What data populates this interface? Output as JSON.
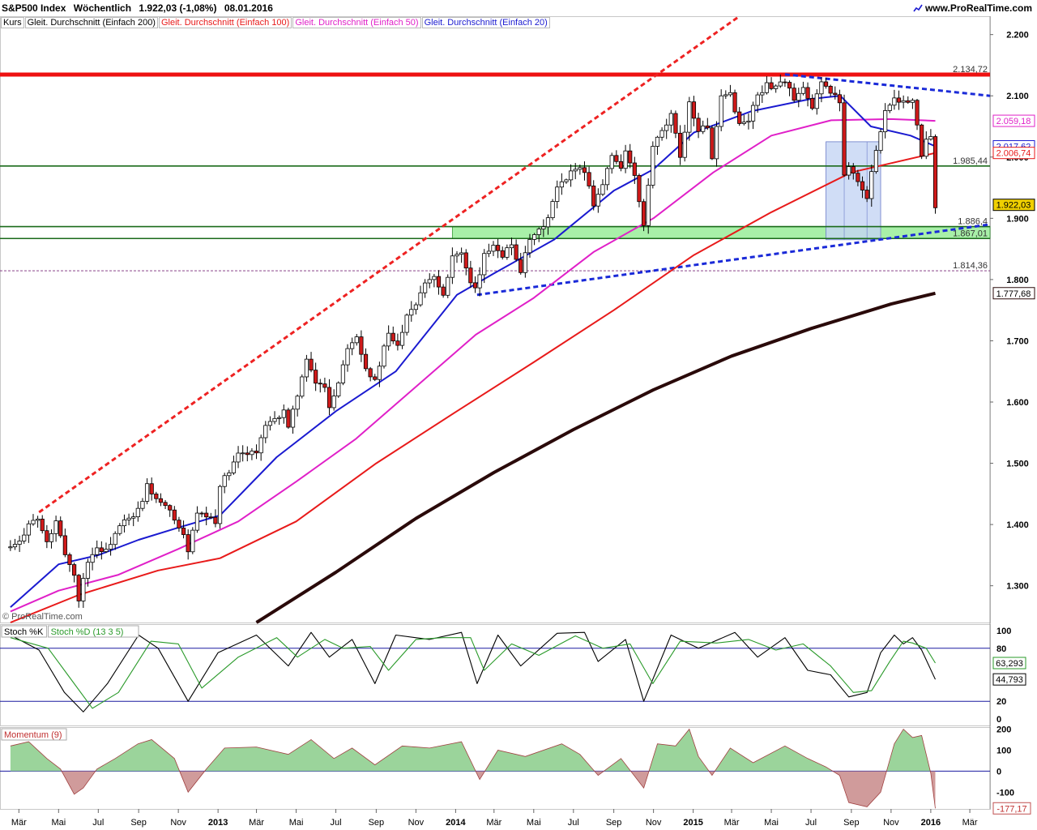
{
  "header": {
    "instrument": "S&P500 Index",
    "period": "Wöchentlich",
    "quote": "1.922,03 (-1,08%)",
    "date": "08.01.2016",
    "site": "www.ProRealTime.com"
  },
  "legend": [
    {
      "label": "Kurs",
      "color": "#000000"
    },
    {
      "label": "Gleit. Durchschnitt (Einfach 200)",
      "color": "#000000"
    },
    {
      "label": "Gleit. Durchschnitt (Einfach 100)",
      "color": "#e81a1a"
    },
    {
      "label": "Gleit. Durchschnitt (Einfach 50)",
      "color": "#e020c8"
    },
    {
      "label": "Gleit. Durchschnitt (Einfach 20)",
      "color": "#1a1ad0"
    }
  ],
  "watermark": "© ProRealTime.com",
  "colors": {
    "up_candle": "#ffffff",
    "down_candle": "#d01a1a",
    "sma200": "#2a0a0a",
    "sma100": "#e81a1a",
    "sma50": "#e020c8",
    "sma20": "#1a1ad0",
    "resistance": "#ee1111",
    "support": "#1a6a1a",
    "trend_dashed_red": "#ee2222",
    "trend_dashed_blue": "#1a2ad8",
    "support_zone": "#a8f0a8",
    "highlight_box": "#c4d4f4",
    "stoch_k": "#000000",
    "stoch_d": "#2a9a2a",
    "momentum_pos": "#8acc8a",
    "momentum_neg": "#c88a8a"
  },
  "chart_data": [
    {
      "type": "candlestick",
      "title": "S&P500 Index Wöchentlich",
      "ylim": [
        1240,
        2230
      ],
      "y_ticks": [
        "1.300",
        "1.400",
        "1.500",
        "1.600",
        "1.700",
        "1.800",
        "1.900",
        "2.000",
        "2.100",
        "2.200"
      ],
      "x_ticks": [
        "Mär",
        "Mai",
        "Jul",
        "Sep",
        "Nov",
        "2013",
        "Mär",
        "Mai",
        "Jul",
        "Sep",
        "Nov",
        "2014",
        "Mär",
        "Mai",
        "Jul",
        "Sep",
        "Nov",
        "2015",
        "Mär",
        "Mai",
        "Jul",
        "Sep",
        "Nov",
        "2016",
        "Mär"
      ],
      "x_range": [
        "2012-02",
        "2016-04"
      ],
      "grid": false,
      "close_points": [
        [
          "2012-02-17",
          1362
        ],
        [
          "2012-03-02",
          1370
        ],
        [
          "2012-03-16",
          1404
        ],
        [
          "2012-03-30",
          1408
        ],
        [
          "2012-04-13",
          1370
        ],
        [
          "2012-04-27",
          1403
        ],
        [
          "2012-05-11",
          1353
        ],
        [
          "2012-05-25",
          1317
        ],
        [
          "2012-06-01",
          1278
        ],
        [
          "2012-06-15",
          1342
        ],
        [
          "2012-06-29",
          1362
        ],
        [
          "2012-07-13",
          1356
        ],
        [
          "2012-07-27",
          1385
        ],
        [
          "2012-08-10",
          1405
        ],
        [
          "2012-08-24",
          1411
        ],
        [
          "2012-09-07",
          1437
        ],
        [
          "2012-09-14",
          1465
        ],
        [
          "2012-09-28",
          1440
        ],
        [
          "2012-10-12",
          1428
        ],
        [
          "2012-10-26",
          1411
        ],
        [
          "2012-11-09",
          1380
        ],
        [
          "2012-11-16",
          1359
        ],
        [
          "2012-11-30",
          1416
        ],
        [
          "2012-12-14",
          1413
        ],
        [
          "2012-12-28",
          1402
        ],
        [
          "2013-01-04",
          1466
        ],
        [
          "2013-01-18",
          1485
        ],
        [
          "2013-02-01",
          1513
        ],
        [
          "2013-02-15",
          1519
        ],
        [
          "2013-03-01",
          1518
        ],
        [
          "2013-03-15",
          1560
        ],
        [
          "2013-03-29",
          1569
        ],
        [
          "2013-04-12",
          1588
        ],
        [
          "2013-04-19",
          1555
        ],
        [
          "2013-05-03",
          1614
        ],
        [
          "2013-05-17",
          1667
        ],
        [
          "2013-05-31",
          1631
        ],
        [
          "2013-06-14",
          1626
        ],
        [
          "2013-06-21",
          1593
        ],
        [
          "2013-07-05",
          1632
        ],
        [
          "2013-07-19",
          1692
        ],
        [
          "2013-08-02",
          1709
        ],
        [
          "2013-08-16",
          1656
        ],
        [
          "2013-08-30",
          1633
        ],
        [
          "2013-09-13",
          1688
        ],
        [
          "2013-09-20",
          1710
        ],
        [
          "2013-10-04",
          1691
        ],
        [
          "2013-10-18",
          1745
        ],
        [
          "2013-11-01",
          1762
        ],
        [
          "2013-11-15",
          1798
        ],
        [
          "2013-11-29",
          1806
        ],
        [
          "2013-12-13",
          1775
        ],
        [
          "2013-12-27",
          1841
        ],
        [
          "2014-01-10",
          1842
        ],
        [
          "2014-01-24",
          1790
        ],
        [
          "2014-01-31",
          1782
        ],
        [
          "2014-02-14",
          1838
        ],
        [
          "2014-02-28",
          1859
        ],
        [
          "2014-03-14",
          1841
        ],
        [
          "2014-03-28",
          1857
        ],
        [
          "2014-04-11",
          1815
        ],
        [
          "2014-04-25",
          1863
        ],
        [
          "2014-05-09",
          1878
        ],
        [
          "2014-05-23",
          1900
        ],
        [
          "2014-06-06",
          1949
        ],
        [
          "2014-06-20",
          1962
        ],
        [
          "2014-07-04",
          1985
        ],
        [
          "2014-07-18",
          1978
        ],
        [
          "2014-08-01",
          1925
        ],
        [
          "2014-08-15",
          1955
        ],
        [
          "2014-08-29",
          2003
        ],
        [
          "2014-09-12",
          1985
        ],
        [
          "2014-09-19",
          2010
        ],
        [
          "2014-10-03",
          1967
        ],
        [
          "2014-10-17",
          1886
        ],
        [
          "2014-10-31",
          2018
        ],
        [
          "2014-11-14",
          2039
        ],
        [
          "2014-11-28",
          2067
        ],
        [
          "2014-12-12",
          2002
        ],
        [
          "2014-12-26",
          2088
        ],
        [
          "2015-01-09",
          2044
        ],
        [
          "2015-01-23",
          2051
        ],
        [
          "2015-01-30",
          1995
        ],
        [
          "2015-02-13",
          2096
        ],
        [
          "2015-02-27",
          2104
        ],
        [
          "2015-03-13",
          2053
        ],
        [
          "2015-03-27",
          2061
        ],
        [
          "2015-04-10",
          2102
        ],
        [
          "2015-04-24",
          2117
        ],
        [
          "2015-05-08",
          2116
        ],
        [
          "2015-05-22",
          2126
        ],
        [
          "2015-06-05",
          2092
        ],
        [
          "2015-06-19",
          2110
        ],
        [
          "2015-07-03",
          2077
        ],
        [
          "2015-07-17",
          2127
        ],
        [
          "2015-07-31",
          2104
        ],
        [
          "2015-08-14",
          2092
        ],
        [
          "2015-08-21",
          1971
        ],
        [
          "2015-08-28",
          1989
        ],
        [
          "2015-09-11",
          1961
        ],
        [
          "2015-09-25",
          1931
        ],
        [
          "2015-10-09",
          2015
        ],
        [
          "2015-10-23",
          2075
        ],
        [
          "2015-11-06",
          2099
        ],
        [
          "2015-11-20",
          2089
        ],
        [
          "2015-12-04",
          2091
        ],
        [
          "2015-12-18",
          2005
        ],
        [
          "2015-12-31",
          2044
        ],
        [
          "2016-01-08",
          1922
        ]
      ],
      "series": [
        {
          "name": "Gleit. Durchschnitt (Einfach 200)",
          "x": [
            "2013-03-01",
            "2013-07-01",
            "2013-11-01",
            "2014-03-01",
            "2014-07-01",
            "2014-11-01",
            "2015-03-01",
            "2015-07-01",
            "2015-11-01",
            "2016-01-08"
          ],
          "values": [
            1240,
            1322,
            1410,
            1485,
            1555,
            1620,
            1675,
            1720,
            1760,
            1777.68
          ]
        },
        {
          "name": "Gleit. Durchschnitt (Einfach 100)",
          "x": [
            "2012-02-17",
            "2012-06-01",
            "2012-10-01",
            "2013-01-04",
            "2013-05-01",
            "2013-09-01",
            "2014-01-03",
            "2014-05-01",
            "2014-09-01",
            "2015-01-02",
            "2015-05-01",
            "2015-09-01",
            "2016-01-08"
          ],
          "values": [
            1240,
            1285,
            1325,
            1345,
            1405,
            1500,
            1585,
            1665,
            1750,
            1840,
            1910,
            1975,
            2006.74
          ]
        },
        {
          "name": "Gleit. Durchschnitt (Einfach 50)",
          "x": [
            "2012-02-17",
            "2012-05-01",
            "2012-08-01",
            "2012-11-01",
            "2013-02-01",
            "2013-05-01",
            "2013-08-01",
            "2013-11-01",
            "2014-02-01",
            "2014-05-01",
            "2014-08-01",
            "2014-11-01",
            "2015-02-01",
            "2015-05-01",
            "2015-08-01",
            "2015-11-01",
            "2016-01-08"
          ],
          "values": [
            1258,
            1292,
            1318,
            1360,
            1405,
            1470,
            1540,
            1625,
            1710,
            1770,
            1845,
            1900,
            1975,
            2035,
            2060,
            2062,
            2059.18
          ]
        },
        {
          "name": "Gleit. Durchschnitt (Einfach 20)",
          "x": [
            "2012-02-17",
            "2012-05-01",
            "2012-07-01",
            "2012-09-01",
            "2012-11-01",
            "2013-01-04",
            "2013-04-01",
            "2013-07-01",
            "2013-10-01",
            "2014-01-03",
            "2014-03-01",
            "2014-06-01",
            "2014-09-01",
            "2014-11-01",
            "2015-01-02",
            "2015-04-01",
            "2015-07-01",
            "2015-08-15",
            "2015-10-01",
            "2015-12-01",
            "2016-01-08"
          ],
          "values": [
            1265,
            1335,
            1350,
            1375,
            1395,
            1415,
            1510,
            1585,
            1650,
            1775,
            1810,
            1865,
            1945,
            1980,
            2040,
            2075,
            2095,
            2100,
            2050,
            2035,
            2017.62
          ]
        }
      ],
      "levels": [
        {
          "label": "2.134,72",
          "value": 2134.72
        },
        {
          "label": "1.985,44",
          "value": 1985.44
        },
        {
          "label": "1.886,4",
          "value": 1886.4
        },
        {
          "label": "1.867,01",
          "value": 1867.01
        },
        {
          "label": "1.814,36",
          "value": 1814.36
        }
      ],
      "price_tags": [
        {
          "label": "2.059,18",
          "value": 2059.18
        },
        {
          "label": "2.017,62",
          "value": 2017.62
        },
        {
          "label": "2.006,74",
          "value": 2006.74
        },
        {
          "label": "1.922,03",
          "value": 1922.03
        },
        {
          "label": "1.777,68",
          "value": 1777.68
        }
      ]
    },
    {
      "type": "line",
      "legend": [
        "Stoch %K",
        "Stoch %D (13 3 5)"
      ],
      "ylim": [
        0,
        100
      ],
      "y_ticks": [
        "100",
        "80",
        "20",
        "0"
      ],
      "reference_lines": [
        80,
        20
      ],
      "series": [
        {
          "name": "Stoch %K",
          "x": [
            "2012-02-17",
            "2012-04-01",
            "2012-05-10",
            "2012-06-08",
            "2012-07-15",
            "2012-09-01",
            "2012-10-01",
            "2012-11-16",
            "2013-01-01",
            "2013-03-01",
            "2013-04-19",
            "2013-05-24",
            "2013-06-21",
            "2013-07-26",
            "2013-08-30",
            "2013-10-01",
            "2013-11-22",
            "2014-01-10",
            "2014-02-03",
            "2014-03-07",
            "2014-04-11",
            "2014-06-06",
            "2014-07-18",
            "2014-08-08",
            "2014-09-19",
            "2014-10-17",
            "2014-11-28",
            "2015-01-09",
            "2015-03-06",
            "2015-04-10",
            "2015-05-22",
            "2015-06-26",
            "2015-07-31",
            "2015-08-28",
            "2015-09-25",
            "2015-10-16",
            "2015-11-06",
            "2015-11-20",
            "2015-12-04",
            "2015-12-18",
            "2016-01-08"
          ],
          "values": [
            95,
            78,
            30,
            8,
            40,
            95,
            80,
            20,
            75,
            95,
            60,
            98,
            70,
            90,
            40,
            95,
            90,
            98,
            40,
            95,
            60,
            97,
            98,
            65,
            90,
            20,
            95,
            80,
            98,
            70,
            92,
            55,
            50,
            25,
            30,
            75,
            95,
            85,
            92,
            78,
            44.793
          ]
        },
        {
          "name": "Stoch %D (13 3 5)",
          "x": [
            "2012-02-17",
            "2012-04-15",
            "2012-05-20",
            "2012-06-22",
            "2012-08-01",
            "2012-09-20",
            "2012-11-01",
            "2012-12-07",
            "2013-02-01",
            "2013-04-01",
            "2013-05-03",
            "2013-06-14",
            "2013-07-12",
            "2013-08-23",
            "2013-09-20",
            "2013-11-01",
            "2013-12-13",
            "2014-01-24",
            "2014-02-14",
            "2014-03-28",
            "2014-05-09",
            "2014-07-04",
            "2014-08-15",
            "2014-09-26",
            "2014-10-31",
            "2014-12-12",
            "2015-02-06",
            "2015-03-27",
            "2015-05-08",
            "2015-06-19",
            "2015-07-31",
            "2015-09-04",
            "2015-10-02",
            "2015-10-30",
            "2015-11-20",
            "2015-12-04",
            "2015-12-25",
            "2016-01-08"
          ],
          "values": [
            92,
            80,
            45,
            12,
            30,
            88,
            85,
            35,
            70,
            92,
            70,
            90,
            80,
            82,
            55,
            90,
            92,
            92,
            55,
            85,
            72,
            94,
            80,
            85,
            40,
            88,
            86,
            90,
            78,
            85,
            60,
            30,
            32,
            65,
            88,
            86,
            80,
            63.293
          ]
        }
      ],
      "value_tags": [
        "63,293",
        "44,793"
      ]
    },
    {
      "type": "area",
      "legend": [
        "Momentum (9)"
      ],
      "ylim": [
        -180,
        210
      ],
      "y_ticks": [
        "200",
        "100",
        "0",
        "-100"
      ],
      "series": [
        {
          "name": "Momentum (9)",
          "x": [
            "2012-02-17",
            "2012-03-16",
            "2012-04-13",
            "2012-05-04",
            "2012-05-25",
            "2012-06-08",
            "2012-06-29",
            "2012-07-27",
            "2012-08-31",
            "2012-09-21",
            "2012-10-26",
            "2012-11-16",
            "2012-12-14",
            "2013-01-11",
            "2013-03-01",
            "2013-04-19",
            "2013-05-24",
            "2013-06-28",
            "2013-07-26",
            "2013-08-30",
            "2013-10-11",
            "2013-11-22",
            "2014-01-10",
            "2014-02-07",
            "2014-03-07",
            "2014-04-18",
            "2014-06-13",
            "2014-07-11",
            "2014-08-08",
            "2014-09-12",
            "2014-10-17",
            "2014-11-07",
            "2014-12-05",
            "2014-12-26",
            "2015-01-09",
            "2015-01-30",
            "2015-02-27",
            "2015-04-03",
            "2015-05-22",
            "2015-06-26",
            "2015-07-24",
            "2015-08-14",
            "2015-08-28",
            "2015-09-25",
            "2015-10-16",
            "2015-11-06",
            "2015-11-20",
            "2015-12-04",
            "2015-12-18",
            "2016-01-01",
            "2016-01-08"
          ],
          "values": [
            120,
            140,
            60,
            10,
            -110,
            -80,
            10,
            60,
            130,
            150,
            60,
            -100,
            10,
            110,
            115,
            80,
            150,
            60,
            110,
            30,
            120,
            110,
            140,
            -40,
            100,
            70,
            130,
            80,
            -20,
            60,
            -80,
            130,
            120,
            200,
            70,
            -20,
            110,
            40,
            120,
            60,
            20,
            -20,
            -150,
            -170,
            -100,
            130,
            200,
            160,
            170,
            -10,
            -177.17
          ]
        }
      ],
      "value_tags": [
        "-177,17"
      ]
    }
  ]
}
